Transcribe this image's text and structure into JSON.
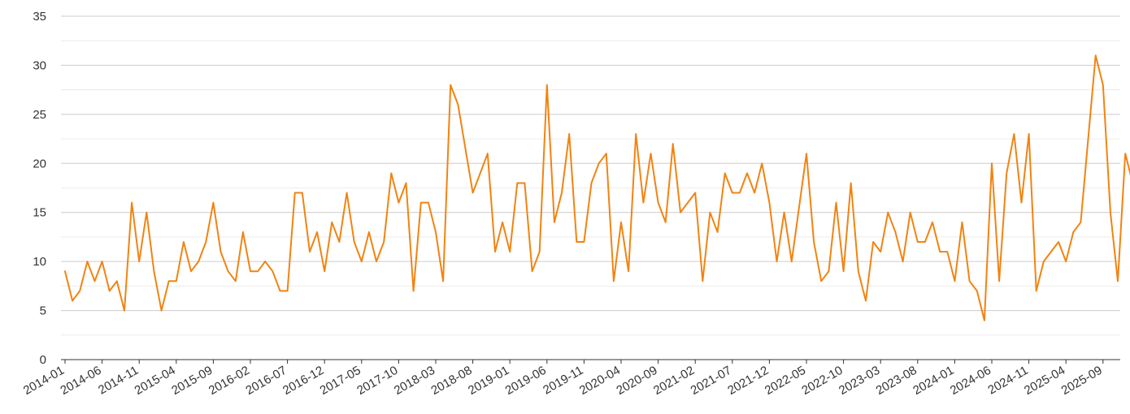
{
  "chart_data": {
    "type": "line",
    "title": "",
    "xlabel": "",
    "ylabel": "",
    "ylim": [
      0,
      35
    ],
    "y_ticks": [
      0,
      5,
      10,
      15,
      20,
      25,
      30,
      35
    ],
    "grid": true,
    "minor_grid": true,
    "line_color": "#f28311",
    "x_tick_labels": [
      "2014-01",
      "2014-06",
      "2014-11",
      "2015-04",
      "2015-09",
      "2016-02",
      "2016-07",
      "2016-12",
      "2017-05",
      "2017-10",
      "2018-03",
      "2018-08",
      "2019-01",
      "2019-06",
      "2019-11",
      "2020-04",
      "2020-09",
      "2021-02",
      "2021-07",
      "2021-12",
      "2022-05",
      "2022-10",
      "2023-03",
      "2023-08",
      "2024-01",
      "2024-06",
      "2024-11",
      "2025-04",
      "2025-09"
    ],
    "series": [
      {
        "start": "2014-01",
        "values": [
          9,
          6,
          7,
          10,
          8,
          10,
          7,
          8,
          5,
          16,
          10,
          15,
          9,
          5,
          8,
          8,
          12,
          9,
          10,
          12,
          16,
          11,
          9,
          8,
          13,
          9,
          9,
          10,
          9,
          7,
          7,
          17,
          17,
          11,
          13,
          9,
          14,
          12,
          17,
          12,
          10,
          13,
          10,
          12,
          19,
          16,
          18,
          7,
          16,
          16,
          13,
          8,
          28,
          26,
          null,
          17,
          null,
          21,
          11,
          14,
          11,
          18,
          18,
          9,
          11,
          28,
          14,
          17,
          23,
          12,
          12,
          18,
          20,
          21,
          8,
          14,
          9,
          23,
          16,
          21,
          16,
          14,
          22,
          15,
          null,
          17,
          8,
          15,
          13,
          19,
          17,
          17,
          19,
          17,
          20,
          16,
          10,
          15,
          10,
          null,
          21,
          12,
          8,
          9,
          16,
          9,
          18,
          9,
          6,
          12,
          11,
          15,
          13,
          10,
          15,
          12,
          12,
          14,
          11,
          11,
          8,
          14,
          8,
          7,
          4,
          20,
          8,
          19,
          23,
          16,
          23,
          7,
          10,
          null,
          12,
          10,
          13,
          14,
          null,
          31,
          28,
          15,
          8,
          21,
          18
        ]
      }
    ]
  }
}
